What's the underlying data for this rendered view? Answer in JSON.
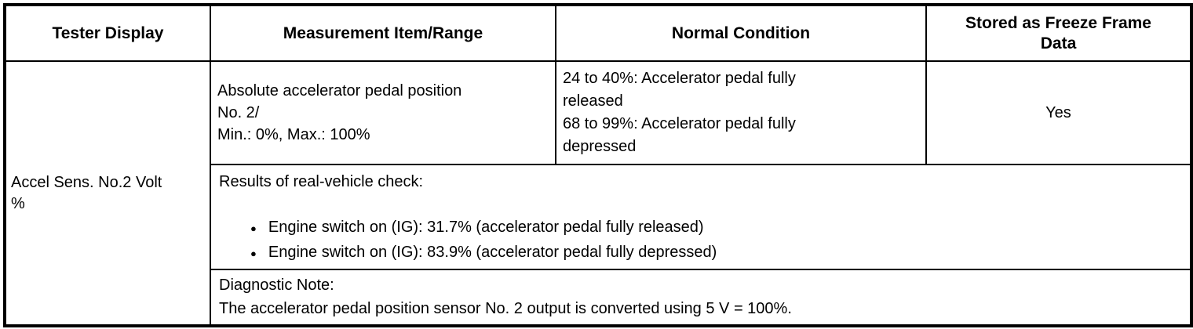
{
  "colors": {
    "border": "#000000",
    "text": "#000000",
    "background": "#ffffff"
  },
  "icons": {
    "bullet": "●"
  },
  "table": {
    "headers": [
      "Tester Display",
      "Measurement Item/Range",
      "Normal Condition",
      "Stored as Freeze Frame Data"
    ],
    "row": {
      "tester_display": "Accel Sens. No.2 Volt %",
      "measurement_item_range": [
        "Absolute accelerator pedal position No. 2/",
        "Min.: 0%, Max.: 100%"
      ],
      "normal_condition": [
        "24 to 40%: Accelerator pedal fully released",
        "68 to 99%: Accelerator pedal fully depressed"
      ],
      "stored_as_freeze_frame": "Yes",
      "real_vehicle_check": {
        "label": "Results of real-vehicle check:",
        "bullets": [
          "Engine switch on (IG): 31.7% (accelerator pedal fully released)",
          "Engine switch on (IG): 83.9% (accelerator pedal fully depressed)"
        ]
      },
      "diagnostic_note": {
        "label": "Diagnostic Note:",
        "text": "The accelerator pedal position sensor No. 2 output is converted using 5 V = 100%."
      }
    }
  }
}
